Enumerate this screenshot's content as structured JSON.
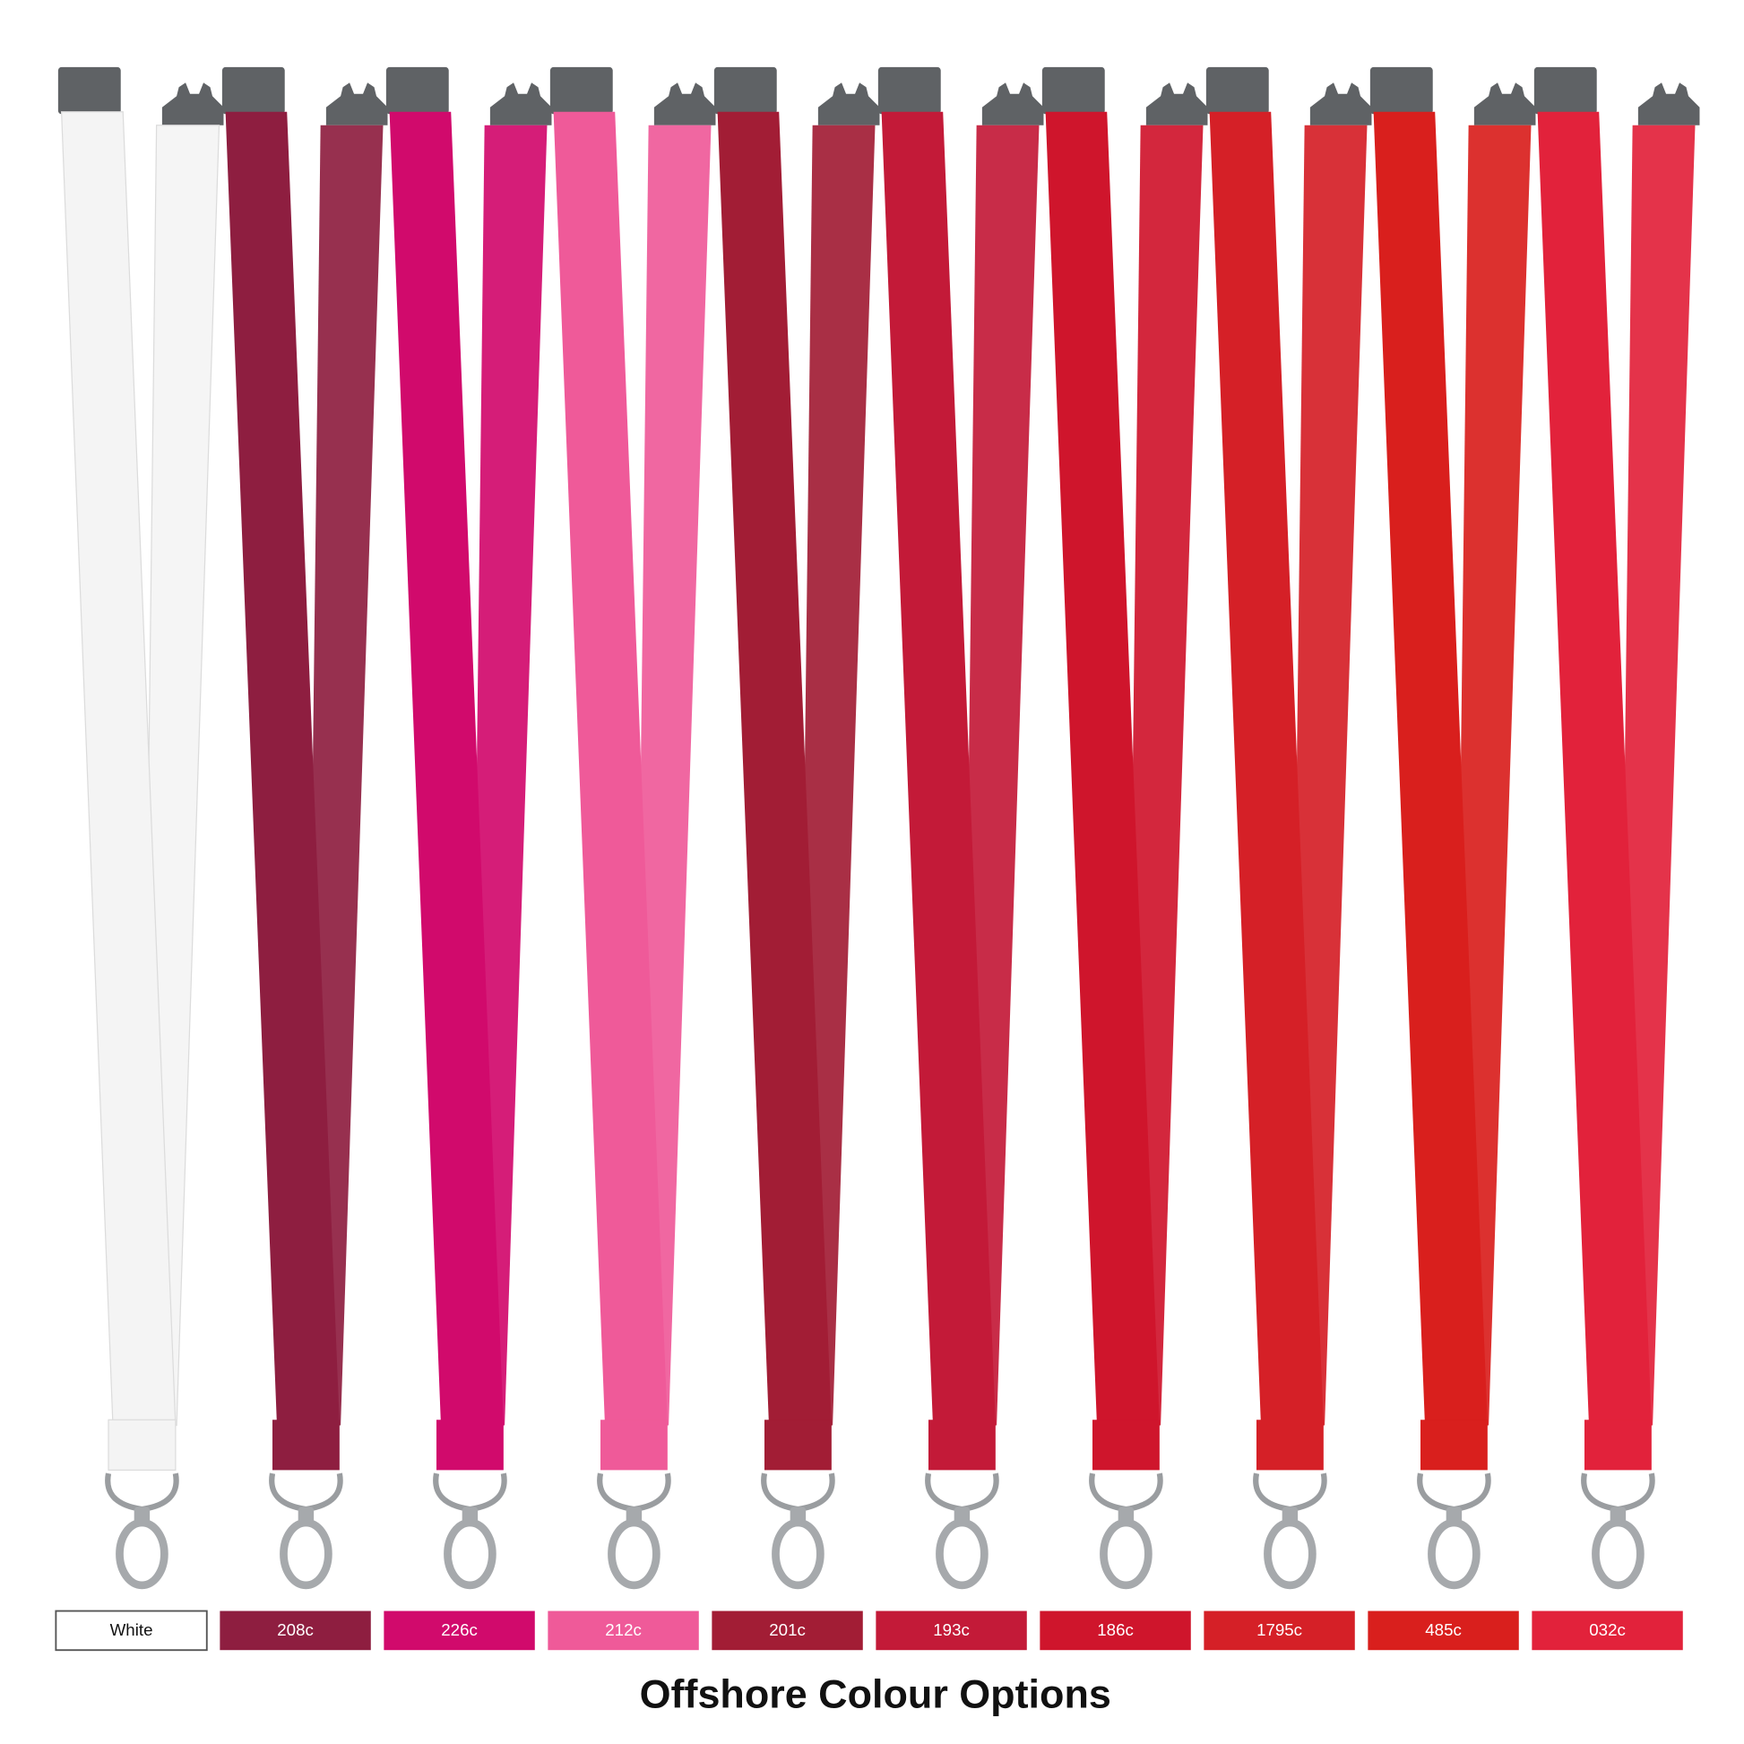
{
  "title": "Offshore Colour Options",
  "swatches": [
    {
      "label": "White",
      "color": "#ffffff"
    },
    {
      "label": "208c",
      "color": "#8e1e40"
    },
    {
      "label": "226c",
      "color": "#d10a6c"
    },
    {
      "label": "212c",
      "color": "#ef5a99"
    },
    {
      "label": "201c",
      "color": "#a21d35"
    },
    {
      "label": "193c",
      "color": "#c31a38"
    },
    {
      "label": "186c",
      "color": "#cf152c"
    },
    {
      "label": "1795c",
      "color": "#d52027"
    },
    {
      "label": "485c",
      "color": "#d91f1d"
    },
    {
      "label": "032c",
      "color": "#e2223b"
    }
  ]
}
